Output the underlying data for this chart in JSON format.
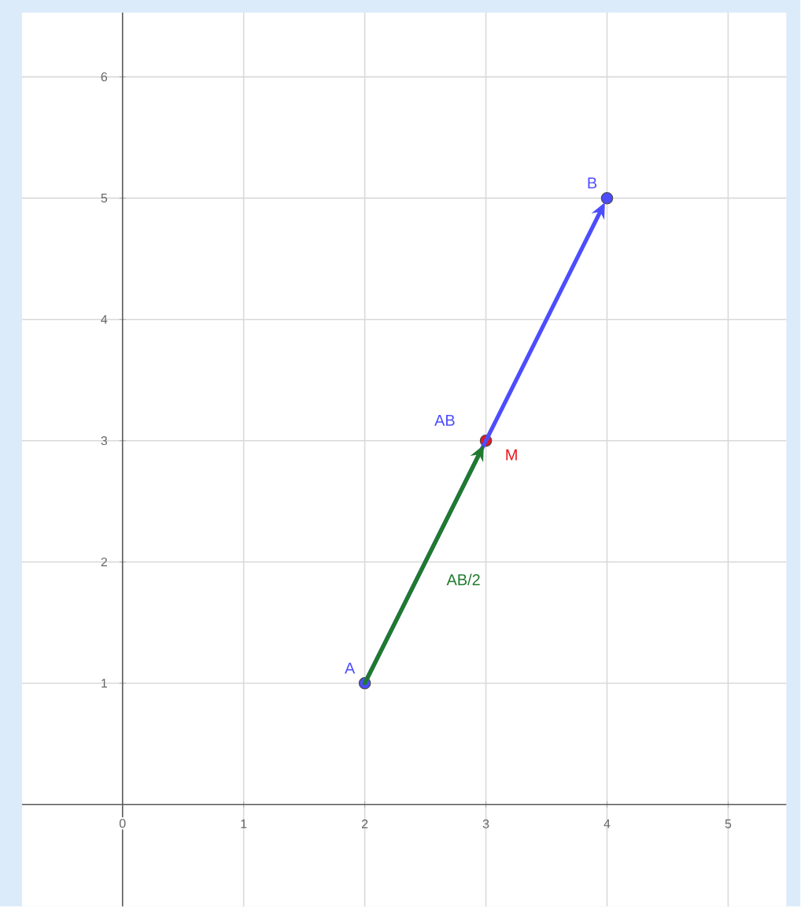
{
  "chart_data": {
    "type": "scatter",
    "xlim": [
      -0.83,
      5.48
    ],
    "ylim": [
      -0.84,
      6.53
    ],
    "xticks": [
      0,
      1,
      2,
      3,
      4,
      5
    ],
    "yticks": [
      1,
      2,
      3,
      4,
      5,
      6
    ],
    "grid": true,
    "marker": "circle",
    "series": [
      {
        "name": "A",
        "color": "#4d4dff",
        "x": [
          2
        ],
        "values": [
          1
        ]
      },
      {
        "name": "B",
        "color": "#4d4dff",
        "x": [
          4
        ],
        "values": [
          5
        ]
      },
      {
        "name": "M",
        "color": "#e8161a",
        "x": [
          3
        ],
        "values": [
          3
        ]
      }
    ],
    "annotations": [
      "AB",
      "AB/2"
    ]
  }
}
